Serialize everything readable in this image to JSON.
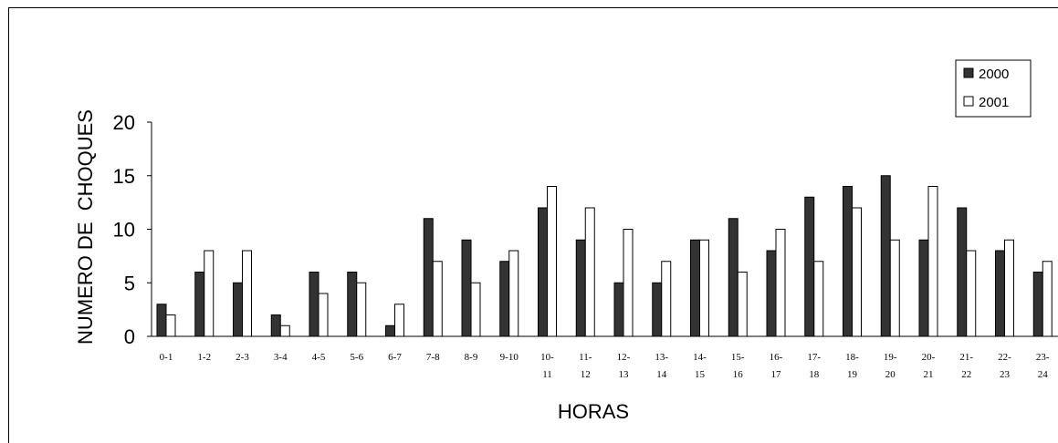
{
  "chart_data": {
    "type": "bar",
    "title": "",
    "xlabel": "HORAS",
    "ylabel": "NUMERO DE  CHOQUES",
    "ylim": [
      0,
      20
    ],
    "yticks": [
      0,
      5,
      10,
      15,
      20
    ],
    "grid": false,
    "legend_position": "top-right",
    "categories": [
      [
        "0-1"
      ],
      [
        "1-2"
      ],
      [
        "2-3"
      ],
      [
        "3-4"
      ],
      [
        "4-5"
      ],
      [
        "5-6"
      ],
      [
        "6-7"
      ],
      [
        "7-8"
      ],
      [
        "8-9"
      ],
      [
        "9-10"
      ],
      [
        "10-",
        "11"
      ],
      [
        "11-",
        "12"
      ],
      [
        "12-",
        "13"
      ],
      [
        "13-",
        "14"
      ],
      [
        "14-",
        "15"
      ],
      [
        "15-",
        "16"
      ],
      [
        "16-",
        "17"
      ],
      [
        "17-",
        "18"
      ],
      [
        "18-",
        "19"
      ],
      [
        "19-",
        "20"
      ],
      [
        "20-",
        "21"
      ],
      [
        "21-",
        "22"
      ],
      [
        "22-",
        "23"
      ],
      [
        "23-",
        "24"
      ]
    ],
    "series": [
      {
        "name": "2000",
        "color": "#333333",
        "values": [
          3,
          6,
          5,
          2,
          6,
          6,
          1,
          11,
          9,
          7,
          12,
          9,
          5,
          5,
          9,
          11,
          8,
          13,
          14,
          15,
          9,
          12,
          8,
          6
        ]
      },
      {
        "name": "2001",
        "color": "#ffffff",
        "values": [
          2,
          8,
          8,
          1,
          4,
          5,
          3,
          7,
          5,
          8,
          14,
          12,
          10,
          7,
          9,
          6,
          10,
          7,
          12,
          9,
          14,
          8,
          9,
          7
        ]
      }
    ]
  }
}
